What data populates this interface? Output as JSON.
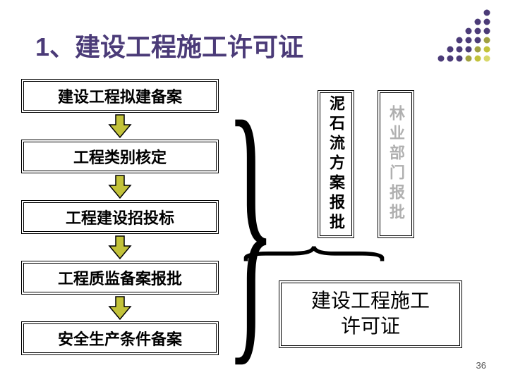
{
  "title": {
    "text": "1、建设工程施工许可证",
    "color": "#4b3b78",
    "fontsize": 36
  },
  "steps": [
    {
      "label": "建设工程拟建备案"
    },
    {
      "label": "工程类别核定"
    },
    {
      "label": "工程建设招投标"
    },
    {
      "label": "工程质监备案报批"
    },
    {
      "label": "安全生产条件备案"
    }
  ],
  "arrow": {
    "fill": "#c2c23a",
    "stroke": "#000000",
    "width": 34,
    "height": 36
  },
  "vertical_boxes": [
    {
      "label": "泥石流方案报批",
      "color": "#000000"
    },
    {
      "label": "林业部门报批",
      "color": "#b0b0b0"
    }
  ],
  "result": {
    "label": "建设工程施工\n许可证"
  },
  "page_number": "36",
  "dot_decoration": {
    "rows": 6,
    "cols": 6,
    "colors": [
      "#4b3b78",
      "#4b3b78",
      "#4b3b78",
      "#a0a040",
      "#c2c23a",
      "#d8d86a"
    ],
    "radius": 4.5,
    "spacing": 13
  },
  "brace_color": "#000000"
}
